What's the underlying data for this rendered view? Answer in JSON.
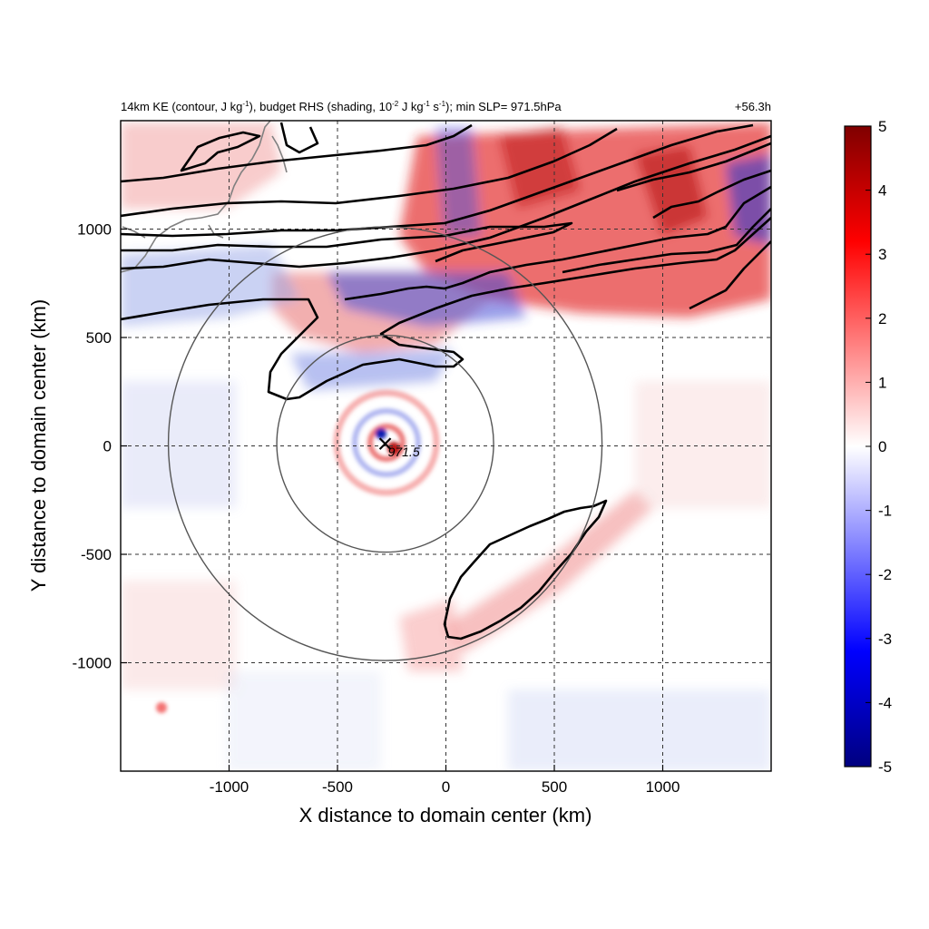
{
  "chart_data": {
    "type": "heatmap",
    "title": {
      "p1": "14km KE (contour, J kg",
      "p1_sup": "-1",
      "p2": "), budget RHS (shading, 10",
      "p2_sup": "-2",
      "p3": " J kg",
      "p3_sup": "-1",
      "p4": " s",
      "p4_sup": "-1",
      "p5": "); min SLP= 971.5hPa"
    },
    "time_label": "+56.3h",
    "xlabel": "X distance to domain center (km)",
    "ylabel": "Y distance to domain center (km)",
    "xlim": [
      -1500,
      1500
    ],
    "ylim": [
      -1500,
      1500
    ],
    "x_ticks": [
      -1000,
      -500,
      0,
      500,
      1000
    ],
    "y_ticks": [
      -1000,
      -500,
      0,
      500,
      1000
    ],
    "x_tick_labels": [
      "-1000",
      "-500",
      "0",
      "500",
      "1000"
    ],
    "y_tick_labels": [
      "-1000",
      "-500",
      "0",
      "500",
      "1000"
    ],
    "grid": "dashed",
    "colorbar": {
      "min": -5,
      "max": 5,
      "ticks": [
        5,
        4,
        3,
        2,
        1,
        0,
        -1,
        -2,
        -3,
        -4,
        -5
      ],
      "tick_labels": [
        "5",
        "4",
        "3",
        "2",
        "1",
        "0",
        "-1",
        "-2",
        "-3",
        "-4",
        "-5"
      ],
      "colors": [
        "#00007f",
        "#0000ff",
        "#ffffff",
        "#ff0000",
        "#7f0000"
      ]
    },
    "storm_center": {
      "x": -280,
      "y": 10,
      "marker": "x-icon",
      "label": "971.5"
    },
    "range_rings": [
      {
        "cx": -280,
        "cy": 10,
        "radius": 500
      },
      {
        "cx": -280,
        "cy": 10,
        "radius": 1000
      }
    ],
    "features": {
      "north_band": "positive and negative shading with closely packed KE contours north of 500 km, strongest east of 0",
      "south_band": "single closed KE contour from about (0,-880) to (740,-260)"
    }
  }
}
